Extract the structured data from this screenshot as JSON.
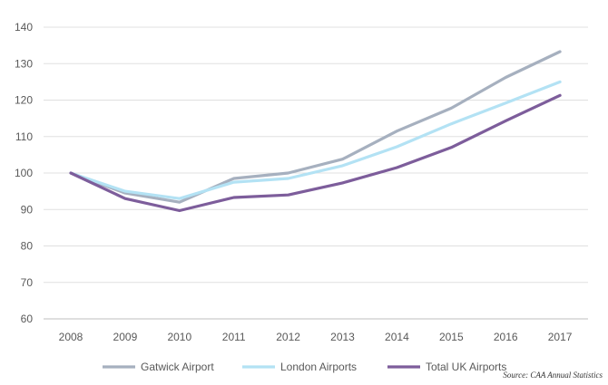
{
  "chart_data": {
    "type": "line",
    "title": "",
    "xlabel": "",
    "ylabel": "",
    "categories": [
      "2008",
      "2009",
      "2010",
      "2011",
      "2012",
      "2013",
      "2014",
      "2015",
      "2016",
      "2017"
    ],
    "ylim": [
      60,
      140
    ],
    "yticks": [
      60,
      70,
      80,
      90,
      100,
      110,
      120,
      130,
      140
    ],
    "grid": true,
    "legend_position": "bottom",
    "series": [
      {
        "name": "Gatwick Airport",
        "color": "#a6b0bf",
        "values": [
          100,
          94.5,
          92,
          98.5,
          100,
          103.8,
          111.5,
          117.8,
          126.2,
          133.3
        ]
      },
      {
        "name": "London Airports",
        "color": "#b3e2f4",
        "values": [
          100,
          95,
          93,
          97.5,
          98.5,
          102,
          107.2,
          113.5,
          119.2,
          125
        ]
      },
      {
        "name": "Total UK Airports",
        "color": "#7d5d9b",
        "values": [
          100,
          93,
          89.7,
          93.3,
          94,
          97.3,
          101.5,
          107,
          114.3,
          121.3
        ]
      }
    ],
    "source": "Source: CAA Annual Statistics"
  }
}
